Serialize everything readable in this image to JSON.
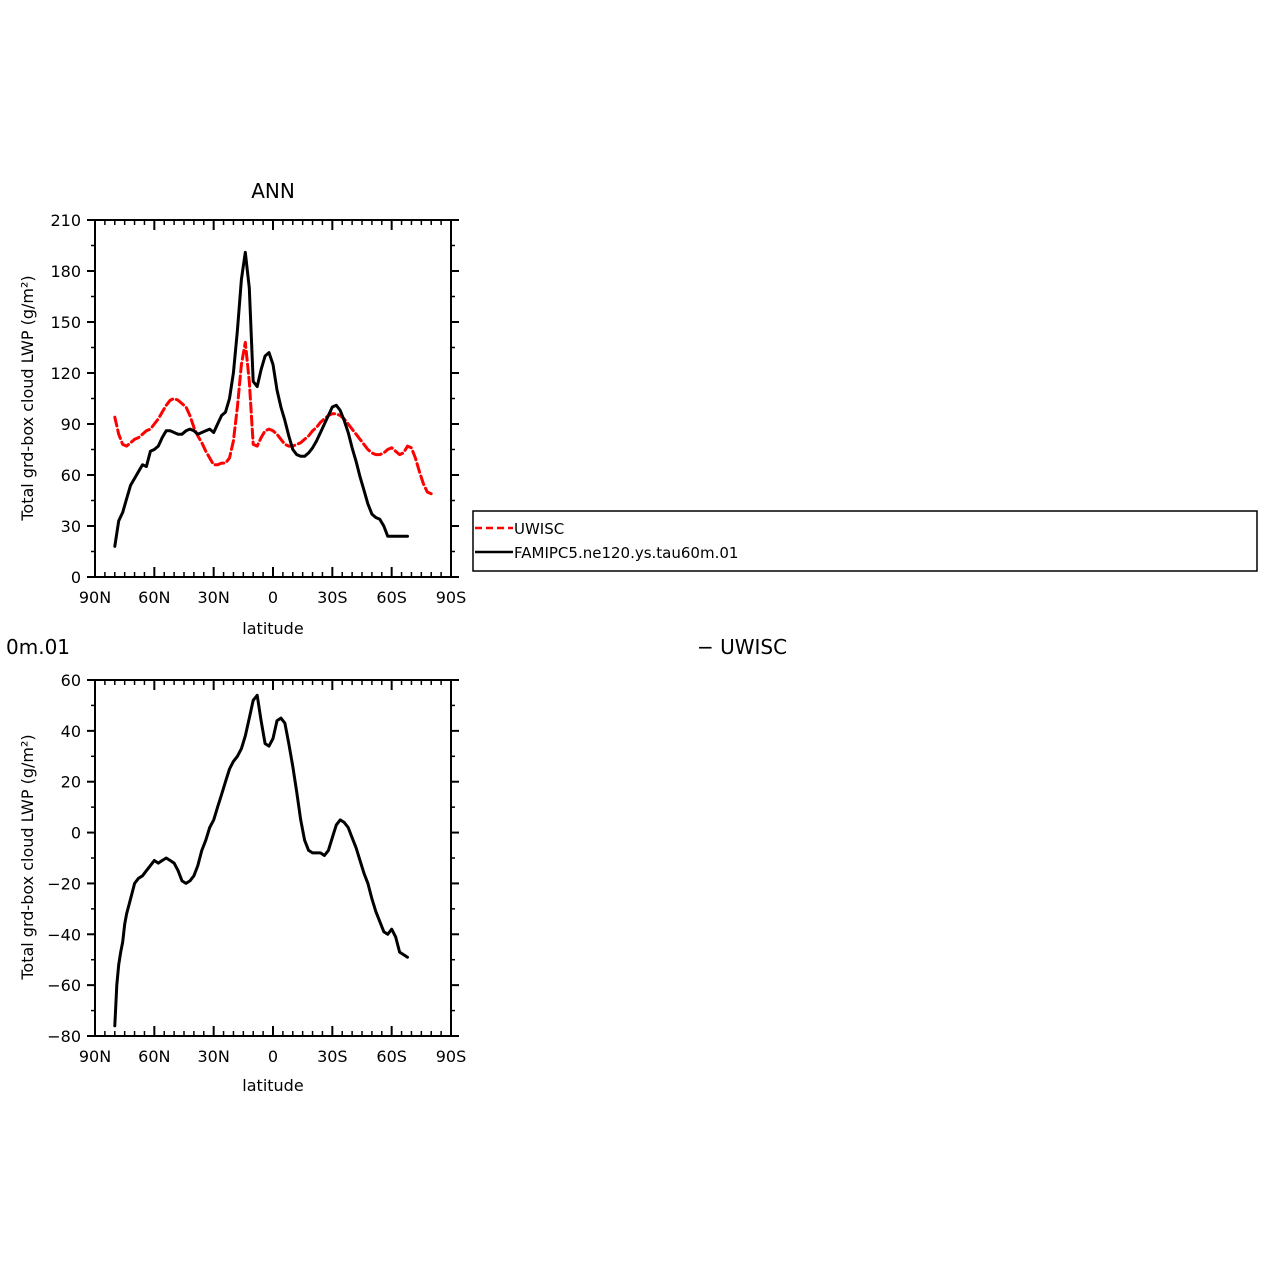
{
  "panel1": {
    "title": "ANN",
    "ylabel": "Total grd-box cloud LWP (g/m²)",
    "xlabel": "latitude"
  },
  "panel2": {
    "title_left": "0m.01",
    "title_right": "− UWISC",
    "ylabel": "Total grd-box cloud LWP (g/m²)",
    "xlabel": "latitude"
  },
  "legend": {
    "items": [
      {
        "label": "UWISC",
        "color": "#ff0000",
        "style": "dashed"
      },
      {
        "label": "FAMIPC5.ne120.ys.tau60m.01",
        "color": "#000000",
        "style": "solid"
      }
    ]
  },
  "chart_data": [
    {
      "type": "line",
      "title": "ANN",
      "xlabel": "latitude",
      "ylabel": "Total grd-box cloud LWP (g/m²)",
      "xlim": [
        90,
        -90
      ],
      "ylim": [
        0,
        210
      ],
      "xticks": [
        90,
        60,
        30,
        0,
        -30,
        -60,
        -90
      ],
      "xtick_labels": [
        "90N",
        "60N",
        "30N",
        "0",
        "30S",
        "60S",
        "90S"
      ],
      "yticks": [
        0,
        30,
        60,
        90,
        120,
        150,
        180,
        210
      ],
      "ytick_labels": [
        "0",
        "30",
        "60",
        "90",
        "120",
        "150",
        "180",
        "210"
      ],
      "series": [
        {
          "name": "UWISC",
          "color": "#ff0000",
          "style": "dashed",
          "x": [
            80,
            78,
            76,
            74,
            72,
            70,
            68,
            66,
            64,
            62,
            60,
            58,
            56,
            54,
            52,
            50,
            48,
            46,
            44,
            42,
            40,
            38,
            36,
            34,
            32,
            30,
            28,
            26,
            24,
            22,
            20,
            18,
            16,
            14,
            12,
            10,
            8,
            6,
            4,
            2,
            0,
            -2,
            -4,
            -6,
            -8,
            -10,
            -12,
            -14,
            -16,
            -18,
            -20,
            -22,
            -24,
            -26,
            -28,
            -30,
            -32,
            -34,
            -36,
            -38,
            -40,
            -42,
            -44,
            -46,
            -48,
            -50,
            -52,
            -54,
            -56,
            -58,
            -60,
            -62,
            -64,
            -66,
            -68,
            -70,
            -72,
            -74,
            -76,
            -78,
            -80
          ],
          "values": [
            94,
            84,
            78,
            77,
            79,
            81,
            82,
            84,
            86,
            87,
            90,
            93,
            97,
            101,
            104,
            105,
            104,
            102,
            100,
            95,
            88,
            83,
            79,
            74,
            70,
            66,
            66,
            67,
            67,
            70,
            80,
            100,
            125,
            138,
            115,
            78,
            77,
            82,
            86,
            87,
            86,
            84,
            81,
            78,
            77,
            77,
            78,
            79,
            81,
            83,
            86,
            88,
            91,
            93,
            95,
            96,
            96,
            95,
            93,
            90,
            87,
            84,
            81,
            78,
            75,
            73,
            72,
            72,
            73,
            75,
            76,
            74,
            72,
            73,
            77,
            76,
            70,
            62,
            55,
            50,
            49
          ]
        },
        {
          "name": "FAMIPC5.ne120.ys.tau60m.01",
          "color": "#000000",
          "style": "solid",
          "x": [
            80,
            78,
            76,
            74,
            72,
            70,
            68,
            66,
            64,
            62,
            60,
            58,
            56,
            54,
            52,
            50,
            48,
            46,
            44,
            42,
            40,
            38,
            36,
            34,
            32,
            30,
            28,
            26,
            24,
            22,
            20,
            18,
            16,
            14,
            12,
            10,
            8,
            6,
            4,
            2,
            0,
            -2,
            -4,
            -6,
            -8,
            -10,
            -12,
            -14,
            -16,
            -18,
            -20,
            -22,
            -24,
            -26,
            -28,
            -30,
            -32,
            -34,
            -36,
            -38,
            -40,
            -42,
            -44,
            -46,
            -48,
            -50,
            -52,
            -54,
            -56,
            -58,
            -60,
            -62,
            -64,
            -66,
            -68
          ],
          "values": [
            18,
            33,
            38,
            46,
            54,
            58,
            62,
            66,
            65,
            74,
            75,
            77,
            82,
            86,
            86,
            85,
            84,
            84,
            86,
            87,
            86,
            84,
            85,
            86,
            87,
            85,
            90,
            95,
            97,
            105,
            120,
            145,
            175,
            191,
            170,
            115,
            112,
            122,
            130,
            132,
            125,
            110,
            100,
            92,
            83,
            75,
            72,
            71,
            71,
            73,
            76,
            80,
            85,
            90,
            95,
            100,
            101,
            98,
            92,
            85,
            76,
            68,
            59,
            51,
            43,
            37,
            35,
            34,
            30,
            24,
            24,
            24,
            24,
            24,
            24
          ]
        }
      ]
    },
    {
      "type": "line",
      "xlabel": "latitude",
      "ylabel": "Total grd-box cloud LWP (g/m²)",
      "xlim": [
        90,
        -90
      ],
      "ylim": [
        -80,
        60
      ],
      "xticks": [
        90,
        60,
        30,
        0,
        -30,
        -60,
        -90
      ],
      "xtick_labels": [
        "90N",
        "60N",
        "30N",
        "0",
        "30S",
        "60S",
        "90S"
      ],
      "yticks": [
        -80,
        -60,
        -40,
        -20,
        0,
        20,
        40,
        60
      ],
      "ytick_labels": [
        "−80",
        "−60",
        "−40",
        "−20",
        "0",
        "20",
        "40",
        "60"
      ],
      "series": [
        {
          "color": "#000000",
          "style": "solid",
          "x": [
            80,
            79,
            78,
            77,
            76,
            75,
            74,
            72,
            70,
            68,
            66,
            64,
            62,
            60,
            58,
            56,
            54,
            52,
            50,
            48,
            46,
            44,
            42,
            40,
            38,
            36,
            34,
            32,
            30,
            28,
            26,
            24,
            22,
            20,
            18,
            16,
            14,
            12,
            10,
            8,
            6,
            4,
            2,
            0,
            -2,
            -4,
            -6,
            -8,
            -10,
            -12,
            -14,
            -16,
            -18,
            -20,
            -22,
            -24,
            -26,
            -28,
            -30,
            -32,
            -34,
            -36,
            -38,
            -40,
            -42,
            -44,
            -46,
            -48,
            -50,
            -52,
            -54,
            -56,
            -58,
            -60,
            -62,
            -64,
            -66,
            -68
          ],
          "values": [
            -76,
            -60,
            -52,
            -47,
            -43,
            -36,
            -32,
            -26,
            -20,
            -18,
            -17,
            -15,
            -13,
            -11,
            -12,
            -11,
            -10,
            -11,
            -12,
            -15,
            -19,
            -20,
            -19,
            -17,
            -13,
            -7,
            -3,
            2,
            5,
            10,
            15,
            20,
            25,
            28,
            30,
            33,
            38,
            45,
            52,
            54,
            44,
            35,
            34,
            37,
            44,
            45,
            43,
            35,
            26,
            16,
            5,
            -3,
            -7,
            -8,
            -8,
            -8,
            -9,
            -7,
            -2,
            3,
            5,
            4,
            2,
            -2,
            -6,
            -11,
            -16,
            -20,
            -26,
            -31,
            -35,
            -39,
            -40,
            -38,
            -41,
            -47,
            -48,
            -49
          ]
        }
      ]
    }
  ]
}
